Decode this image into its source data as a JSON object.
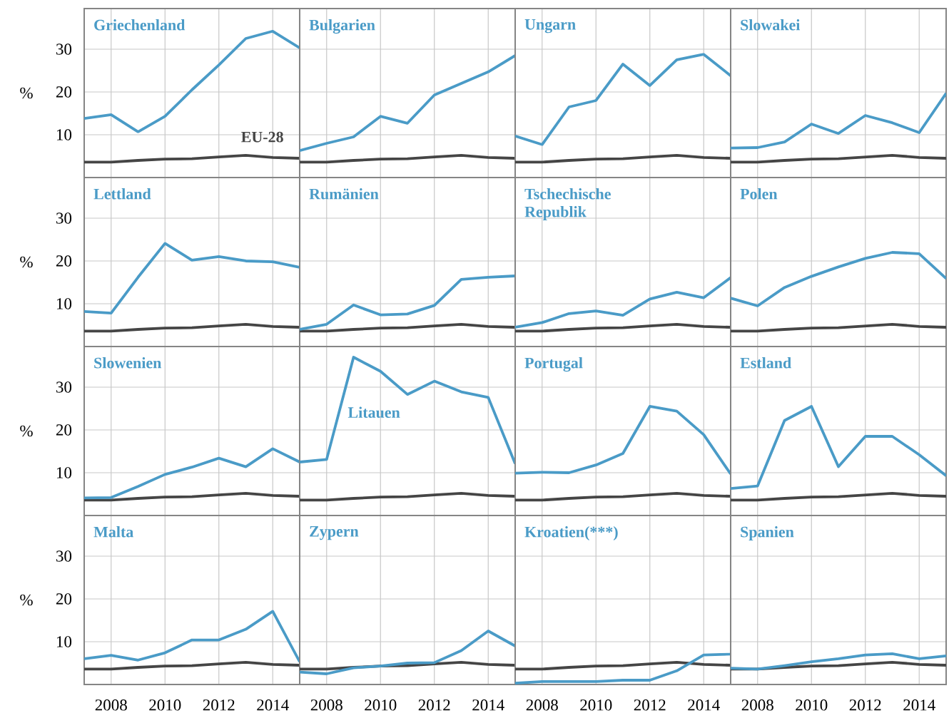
{
  "chart_data": [
    {
      "type": "line",
      "title": "Griechenland",
      "ylabel": "%",
      "x": [
        2007,
        2008,
        2009,
        2010,
        2011,
        2012,
        2013,
        2014,
        2015
      ],
      "xlim": [
        2007,
        2015
      ],
      "ylim": [
        0,
        39.5
      ],
      "xticks": [
        2008,
        2010,
        2012,
        2014
      ],
      "yticks": [
        10,
        20,
        30
      ],
      "grid": true,
      "tick_labels": "y",
      "series": [
        {
          "name": "EU-28",
          "color": "#454545",
          "values": [
            3.6,
            3.6,
            4.0,
            4.3,
            4.4,
            4.8,
            5.2,
            4.7,
            4.5
          ]
        },
        {
          "color": "#4a9bc7",
          "values": [
            13.8,
            14.7,
            10.7,
            14.3,
            20.5,
            26.3,
            32.5,
            34.2,
            30.3
          ]
        }
      ]
    },
    {
      "type": "line",
      "title": "Bulgarien",
      "x": [
        2007,
        2008,
        2009,
        2010,
        2011,
        2012,
        2013,
        2014,
        2015
      ],
      "xlim": [
        2007,
        2015
      ],
      "ylim": [
        0,
        39.5
      ],
      "xticks": [
        2008,
        2010,
        2012,
        2014
      ],
      "yticks": [
        10,
        20,
        30
      ],
      "grid": true,
      "tick_labels": false,
      "series": [
        {
          "color": "#454545",
          "values": [
            3.6,
            3.6,
            4.0,
            4.3,
            4.4,
            4.8,
            5.2,
            4.7,
            4.5
          ]
        },
        {
          "color": "#4a9bc7",
          "values": [
            6.3,
            8.0,
            9.5,
            14.3,
            12.7,
            19.3,
            22.0,
            24.7,
            28.5
          ]
        }
      ]
    },
    {
      "type": "line",
      "title": "Ungarn",
      "x": [
        2007,
        2008,
        2009,
        2010,
        2011,
        2012,
        2013,
        2014,
        2015
      ],
      "xlim": [
        2007,
        2015
      ],
      "ylim": [
        0,
        39.5
      ],
      "xticks": [
        2008,
        2010,
        2012,
        2014
      ],
      "yticks": [
        10,
        20,
        30
      ],
      "grid": true,
      "tick_labels": false,
      "series": [
        {
          "color": "#454545",
          "values": [
            3.6,
            3.6,
            4.0,
            4.3,
            4.4,
            4.8,
            5.2,
            4.7,
            4.5
          ]
        },
        {
          "color": "#4a9bc7",
          "values": [
            9.7,
            7.7,
            16.5,
            18.0,
            26.5,
            21.5,
            27.5,
            28.8,
            23.8
          ]
        }
      ]
    },
    {
      "type": "line",
      "title": "Slowakei",
      "x": [
        2007,
        2008,
        2009,
        2010,
        2011,
        2012,
        2013,
        2014,
        2015
      ],
      "xlim": [
        2007,
        2015
      ],
      "ylim": [
        0,
        39.5
      ],
      "xticks": [
        2008,
        2010,
        2012,
        2014
      ],
      "yticks": [
        10,
        20,
        30
      ],
      "grid": true,
      "tick_labels": false,
      "series": [
        {
          "color": "#454545",
          "values": [
            3.6,
            3.6,
            4.0,
            4.3,
            4.4,
            4.8,
            5.2,
            4.7,
            4.5
          ]
        },
        {
          "color": "#4a9bc7",
          "values": [
            6.9,
            7.0,
            8.3,
            12.5,
            10.3,
            14.5,
            12.8,
            10.5,
            19.7
          ]
        }
      ]
    },
    {
      "type": "line",
      "title": "Lettland",
      "ylabel": "%",
      "x": [
        2007,
        2008,
        2009,
        2010,
        2011,
        2012,
        2013,
        2014,
        2015
      ],
      "xlim": [
        2007,
        2015
      ],
      "ylim": [
        0,
        39.5
      ],
      "xticks": [
        2008,
        2010,
        2012,
        2014
      ],
      "yticks": [
        10,
        20,
        30
      ],
      "grid": true,
      "tick_labels": "y",
      "series": [
        {
          "color": "#454545",
          "values": [
            3.6,
            3.6,
            4.0,
            4.3,
            4.4,
            4.8,
            5.2,
            4.7,
            4.5
          ]
        },
        {
          "color": "#4a9bc7",
          "values": [
            8.2,
            7.8,
            16.2,
            24.1,
            20.2,
            21.0,
            20.0,
            19.8,
            18.5
          ]
        }
      ]
    },
    {
      "type": "line",
      "title": "Rumänien",
      "x": [
        2007,
        2008,
        2009,
        2010,
        2011,
        2012,
        2013,
        2014,
        2015
      ],
      "xlim": [
        2007,
        2015
      ],
      "ylim": [
        0,
        39.5
      ],
      "xticks": [
        2008,
        2010,
        2012,
        2014
      ],
      "yticks": [
        10,
        20,
        30
      ],
      "grid": true,
      "tick_labels": false,
      "series": [
        {
          "color": "#454545",
          "values": [
            3.6,
            3.6,
            4.0,
            4.3,
            4.4,
            4.8,
            5.2,
            4.7,
            4.5
          ]
        },
        {
          "color": "#4a9bc7",
          "values": [
            4.0,
            5.2,
            9.7,
            7.4,
            7.6,
            9.6,
            15.7,
            16.2,
            16.5
          ]
        }
      ]
    },
    {
      "type": "line",
      "title": "Tschechische Republik",
      "x": [
        2007,
        2008,
        2009,
        2010,
        2011,
        2012,
        2013,
        2014,
        2015
      ],
      "xlim": [
        2007,
        2015
      ],
      "ylim": [
        0,
        39.5
      ],
      "xticks": [
        2008,
        2010,
        2012,
        2014
      ],
      "yticks": [
        10,
        20,
        30
      ],
      "grid": true,
      "tick_labels": false,
      "series": [
        {
          "color": "#454545",
          "values": [
            3.6,
            3.6,
            4.0,
            4.3,
            4.4,
            4.8,
            5.2,
            4.7,
            4.5
          ]
        },
        {
          "color": "#4a9bc7",
          "values": [
            4.5,
            5.6,
            7.7,
            8.3,
            7.3,
            11.1,
            12.7,
            11.4,
            16.1
          ]
        }
      ]
    },
    {
      "type": "line",
      "title": "Polen",
      "x": [
        2007,
        2008,
        2009,
        2010,
        2011,
        2012,
        2013,
        2014,
        2015
      ],
      "xlim": [
        2007,
        2015
      ],
      "ylim": [
        0,
        39.5
      ],
      "xticks": [
        2008,
        2010,
        2012,
        2014
      ],
      "yticks": [
        10,
        20,
        30
      ],
      "grid": true,
      "tick_labels": false,
      "series": [
        {
          "color": "#454545",
          "values": [
            3.6,
            3.6,
            4.0,
            4.3,
            4.4,
            4.8,
            5.2,
            4.7,
            4.5
          ]
        },
        {
          "color": "#4a9bc7",
          "values": [
            11.3,
            9.5,
            13.8,
            16.4,
            18.6,
            20.6,
            22.0,
            21.7,
            15.9
          ]
        }
      ]
    },
    {
      "type": "line",
      "title": "Slowenien",
      "ylabel": "%",
      "x": [
        2007,
        2008,
        2009,
        2010,
        2011,
        2012,
        2013,
        2014,
        2015
      ],
      "xlim": [
        2007,
        2015
      ],
      "ylim": [
        0,
        39.5
      ],
      "xticks": [
        2008,
        2010,
        2012,
        2014
      ],
      "yticks": [
        10,
        20,
        30
      ],
      "grid": true,
      "tick_labels": "y",
      "series": [
        {
          "color": "#454545",
          "values": [
            3.6,
            3.6,
            4.0,
            4.3,
            4.4,
            4.8,
            5.2,
            4.7,
            4.5
          ]
        },
        {
          "color": "#4a9bc7",
          "values": [
            4.1,
            4.2,
            6.8,
            9.6,
            11.3,
            13.4,
            11.4,
            15.6,
            12.5
          ]
        }
      ]
    },
    {
      "type": "line",
      "title": "Litauen",
      "x": [
        2007,
        2008,
        2009,
        2010,
        2011,
        2012,
        2013,
        2014,
        2015
      ],
      "xlim": [
        2007,
        2015
      ],
      "ylim": [
        0,
        39.5
      ],
      "xticks": [
        2008,
        2010,
        2012,
        2014
      ],
      "yticks": [
        10,
        20,
        30
      ],
      "grid": true,
      "tick_labels": false,
      "series": [
        {
          "color": "#454545",
          "values": [
            3.6,
            3.6,
            4.0,
            4.3,
            4.4,
            4.8,
            5.2,
            4.7,
            4.5
          ]
        },
        {
          "color": "#4a9bc7",
          "values": [
            12.5,
            13.1,
            37.0,
            33.7,
            28.3,
            31.4,
            28.9,
            27.6,
            12.1
          ]
        }
      ]
    },
    {
      "type": "line",
      "title": "Portugal",
      "x": [
        2007,
        2008,
        2009,
        2010,
        2011,
        2012,
        2013,
        2014,
        2015
      ],
      "xlim": [
        2007,
        2015
      ],
      "ylim": [
        0,
        39.5
      ],
      "xticks": [
        2008,
        2010,
        2012,
        2014
      ],
      "yticks": [
        10,
        20,
        30
      ],
      "grid": true,
      "tick_labels": false,
      "series": [
        {
          "color": "#454545",
          "values": [
            3.6,
            3.6,
            4.0,
            4.3,
            4.4,
            4.8,
            5.2,
            4.7,
            4.5
          ]
        },
        {
          "color": "#4a9bc7",
          "values": [
            9.9,
            10.1,
            10.0,
            11.8,
            14.5,
            25.5,
            24.4,
            18.9,
            9.7
          ]
        }
      ]
    },
    {
      "type": "line",
      "title": "Estland",
      "x": [
        2007,
        2008,
        2009,
        2010,
        2011,
        2012,
        2013,
        2014,
        2015
      ],
      "xlim": [
        2007,
        2015
      ],
      "ylim": [
        0,
        39.5
      ],
      "xticks": [
        2008,
        2010,
        2012,
        2014
      ],
      "yticks": [
        10,
        20,
        30
      ],
      "grid": true,
      "tick_labels": false,
      "series": [
        {
          "color": "#454545",
          "values": [
            3.6,
            3.6,
            4.0,
            4.3,
            4.4,
            4.8,
            5.2,
            4.7,
            4.5
          ]
        },
        {
          "color": "#4a9bc7",
          "values": [
            6.3,
            6.9,
            22.2,
            25.5,
            11.4,
            18.5,
            18.5,
            14.2,
            9.3
          ]
        }
      ]
    },
    {
      "type": "line",
      "title": "Malta",
      "ylabel": "%",
      "x": [
        2007,
        2008,
        2009,
        2010,
        2011,
        2012,
        2013,
        2014,
        2015
      ],
      "xlim": [
        2007,
        2015
      ],
      "ylim": [
        0,
        39.5
      ],
      "xticks": [
        2008,
        2010,
        2012,
        2014
      ],
      "yticks": [
        10,
        20,
        30
      ],
      "grid": true,
      "series": [
        {
          "color": "#454545",
          "values": [
            3.6,
            3.6,
            4.0,
            4.3,
            4.4,
            4.8,
            5.2,
            4.7,
            4.5
          ]
        },
        {
          "color": "#4a9bc7",
          "values": [
            6.0,
            6.8,
            5.7,
            7.4,
            10.4,
            10.4,
            12.9,
            17.1,
            5.3
          ]
        }
      ]
    },
    {
      "type": "line",
      "title": "Zypern",
      "x": [
        2007,
        2008,
        2009,
        2010,
        2011,
        2012,
        2013,
        2014,
        2015
      ],
      "xlim": [
        2007,
        2015
      ],
      "ylim": [
        0,
        39.5
      ],
      "xticks": [
        2008,
        2010,
        2012,
        2014
      ],
      "yticks": [
        10,
        20,
        30
      ],
      "grid": true,
      "tick_labels": "x",
      "series": [
        {
          "color": "#454545",
          "values": [
            3.6,
            3.6,
            4.0,
            4.3,
            4.4,
            4.8,
            5.2,
            4.7,
            4.5
          ]
        },
        {
          "color": "#4a9bc7",
          "values": [
            2.9,
            2.5,
            3.9,
            4.3,
            5.0,
            5.1,
            7.9,
            12.5,
            9.0
          ]
        }
      ]
    },
    {
      "type": "line",
      "title": "Kroatien(***)",
      "x": [
        2007,
        2008,
        2009,
        2010,
        2011,
        2012,
        2013,
        2014,
        2015
      ],
      "xlim": [
        2007,
        2015
      ],
      "ylim": [
        0,
        39.5
      ],
      "xticks": [
        2008,
        2010,
        2012,
        2014
      ],
      "yticks": [
        10,
        20,
        30
      ],
      "grid": true,
      "tick_labels": "x",
      "series": [
        {
          "color": "#454545",
          "values": [
            3.6,
            3.6,
            4.0,
            4.3,
            4.4,
            4.8,
            5.2,
            4.7,
            4.5
          ]
        },
        {
          "color": "#4a9bc7",
          "values": [
            0.3,
            0.7,
            0.7,
            0.7,
            1.0,
            1.0,
            3.2,
            6.9,
            7.1
          ]
        }
      ]
    },
    {
      "type": "line",
      "title": "Spanien",
      "x": [
        2007,
        2008,
        2009,
        2010,
        2011,
        2012,
        2013,
        2014,
        2015
      ],
      "xlim": [
        2007,
        2015
      ],
      "ylim": [
        0,
        39.5
      ],
      "xticks": [
        2008,
        2010,
        2012,
        2014
      ],
      "yticks": [
        10,
        20,
        30
      ],
      "grid": true,
      "tick_labels": "x",
      "series": [
        {
          "color": "#454545",
          "values": [
            3.6,
            3.6,
            4.0,
            4.3,
            4.4,
            4.8,
            5.2,
            4.7,
            4.5
          ]
        },
        {
          "color": "#4a9bc7",
          "values": [
            3.8,
            3.6,
            4.4,
            5.3,
            6.0,
            6.9,
            7.2,
            6.0,
            6.7
          ]
        }
      ]
    }
  ]
}
